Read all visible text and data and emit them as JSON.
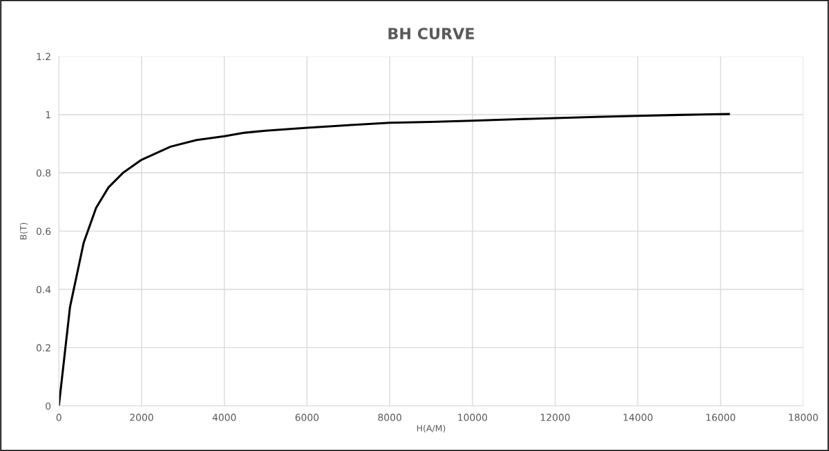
{
  "chart_data": {
    "type": "line",
    "title": "BH CURVE",
    "xlabel": "H(A/M)",
    "ylabel": "B(T)",
    "x": [
      0,
      270,
      600,
      900,
      1200,
      1550,
      2000,
      2700,
      3330,
      4000,
      4500,
      5000,
      6000,
      7000,
      8000,
      9000,
      10000,
      11000,
      12000,
      13000,
      14000,
      15000,
      16200
    ],
    "series": [
      {
        "color": "#000000",
        "values": [
          0,
          0.34,
          0.56,
          0.68,
          0.75,
          0.8,
          0.845,
          0.89,
          0.913,
          0.926,
          0.938,
          0.945,
          0.955,
          0.964,
          0.972,
          0.975,
          0.979,
          0.984,
          0.988,
          0.992,
          0.996,
          0.999,
          1.002
        ]
      }
    ],
    "xlim": [
      0,
      18000
    ],
    "xticks": [
      0,
      2000,
      4000,
      6000,
      8000,
      10000,
      12000,
      14000,
      16000,
      18000
    ],
    "ylim": [
      0,
      1.2
    ],
    "yticks": [
      0,
      0.2,
      0.4,
      0.6,
      0.8,
      1,
      1.2
    ],
    "grid": true,
    "marker": "none",
    "line_style": "solid"
  }
}
